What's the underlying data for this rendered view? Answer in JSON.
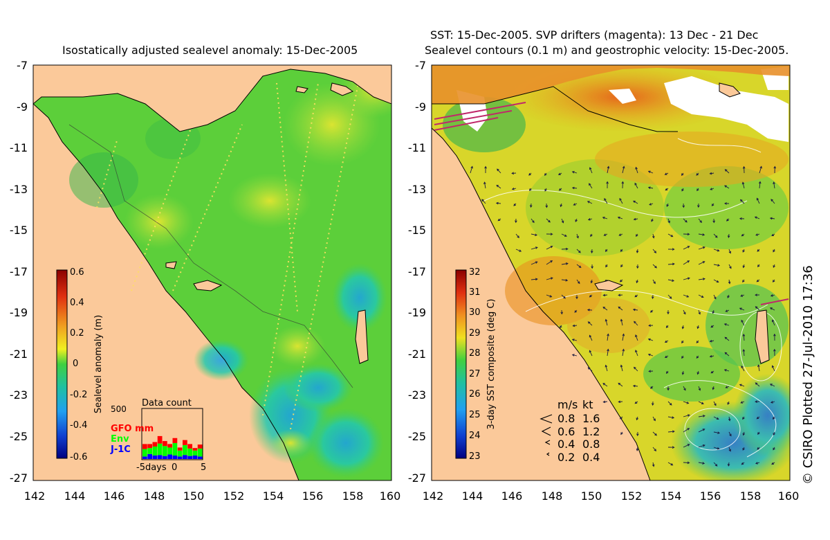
{
  "left_panel": {
    "title": "Isostatically adjusted sealevel anomaly: 15-Dec-2005",
    "lat_ticks": [
      "-7",
      "-9",
      "-11",
      "-13",
      "-15",
      "-17",
      "-19",
      "-21",
      "-23",
      "-25",
      "-27"
    ],
    "lon_ticks": [
      "142",
      "144",
      "146",
      "148",
      "150",
      "152",
      "154",
      "156",
      "158",
      "160"
    ],
    "colorbar": {
      "label": "Sealevel anomaly (m)",
      "ticks": [
        "0.6",
        "0.4",
        "0.2",
        "0",
        "-0.2",
        "-0.4",
        "-0.6"
      ]
    },
    "data_count": {
      "title": "Data count",
      "ymax_label": "500",
      "series": [
        {
          "name": "GFO mm",
          "color": "#ff0000"
        },
        {
          "name": "Env",
          "color": "#00ff00"
        },
        {
          "name": "J-1C",
          "color": "#0000ff"
        }
      ],
      "x_ticks": [
        "-5days",
        "0",
        "5"
      ],
      "bars": [
        {
          "j1c": 0.05,
          "env": 0.15,
          "gfo": 0.1
        },
        {
          "j1c": 0.1,
          "env": 0.12,
          "gfo": 0.08
        },
        {
          "j1c": 0.07,
          "env": 0.18,
          "gfo": 0.09
        },
        {
          "j1c": 0.08,
          "env": 0.23,
          "gfo": 0.15
        },
        {
          "j1c": 0.06,
          "env": 0.2,
          "gfo": 0.1
        },
        {
          "j1c": 0.09,
          "env": 0.14,
          "gfo": 0.07
        },
        {
          "j1c": 0.07,
          "env": 0.25,
          "gfo": 0.1
        },
        {
          "j1c": 0.05,
          "env": 0.12,
          "gfo": 0.06
        },
        {
          "j1c": 0.08,
          "env": 0.2,
          "gfo": 0.1
        },
        {
          "j1c": 0.06,
          "env": 0.15,
          "gfo": 0.09
        },
        {
          "j1c": 0.07,
          "env": 0.1,
          "gfo": 0.05
        },
        {
          "j1c": 0.05,
          "env": 0.16,
          "gfo": 0.08
        }
      ]
    }
  },
  "right_panel": {
    "title_line1": "SST: 15-Dec-2005. SVP drifters (magenta): 13 Dec - 21 Dec",
    "title_line2": "Sealevel contours (0.1 m) and geostrophic velocity: 15-Dec-2005.",
    "lat_ticks": [
      "-7",
      "-9",
      "-11",
      "-13",
      "-15",
      "-17",
      "-19",
      "-21",
      "-23",
      "-25",
      "-27"
    ],
    "lon_ticks": [
      "142",
      "144",
      "146",
      "148",
      "150",
      "152",
      "154",
      "156",
      "158",
      "160"
    ],
    "colorbar": {
      "label": "3-day SST composite (deg C)",
      "ticks": [
        "32",
        "31",
        "30",
        "29",
        "28",
        "27",
        "26",
        "25",
        "24",
        "23"
      ]
    },
    "velocity_legend": {
      "header_ms": "m/s",
      "header_kt": "kt",
      "rows": [
        {
          "ms": "0.8",
          "kt": "1.6"
        },
        {
          "ms": "0.6",
          "kt": "1.2"
        },
        {
          "ms": "0.4",
          "kt": "0.8"
        },
        {
          "ms": "0.2",
          "kt": "0.4"
        }
      ]
    }
  },
  "credit": "© CSIRO Plotted 27-Jul-2010 17:36",
  "colors": {
    "land": "#fbc99a",
    "sla_green": "#4fcf3a",
    "sst_orange": "#e89a1e"
  }
}
